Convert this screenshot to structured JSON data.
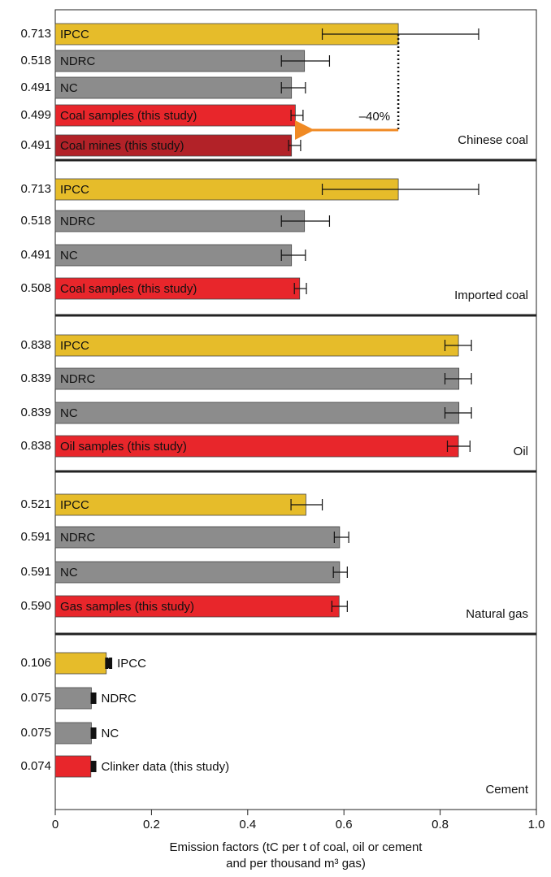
{
  "chart_data": [
    {
      "type": "bar",
      "title": "Chinese coal",
      "annotation": "–40%",
      "categories": [
        "IPCC",
        "NDRC",
        "NC",
        "Coal samples (this study)",
        "Coal mines (this study)"
      ],
      "values": [
        0.713,
        0.518,
        0.491,
        0.499,
        0.491
      ],
      "value_labels": [
        "0.713",
        "0.518",
        "0.491",
        "0.499",
        "0.491"
      ],
      "err_low": [
        0.555,
        0.47,
        0.47,
        0.49,
        0.485
      ],
      "err_high": [
        0.88,
        0.57,
        0.52,
        0.515,
        0.51
      ],
      "colors": [
        "#e6bc2a",
        "#8c8c8c",
        "#8c8c8c",
        "#e8262b",
        "#b22228"
      ],
      "label_colors": [
        "#e0571c",
        "#ffffff",
        "#ffffff",
        "#ffffff",
        "#ffffff"
      ],
      "labels_outside": false
    },
    {
      "type": "bar",
      "title": "Imported coal",
      "categories": [
        "IPCC",
        "NDRC",
        "NC",
        "Coal samples (this study)"
      ],
      "values": [
        0.713,
        0.518,
        0.491,
        0.508
      ],
      "value_labels": [
        "0.713",
        "0.518",
        "0.491",
        "0.508"
      ],
      "err_low": [
        0.555,
        0.47,
        0.47,
        0.497
      ],
      "err_high": [
        0.88,
        0.57,
        0.52,
        0.522
      ],
      "colors": [
        "#e6bc2a",
        "#8c8c8c",
        "#8c8c8c",
        "#e8262b"
      ],
      "label_colors": [
        "#e0571c",
        "#ffffff",
        "#ffffff",
        "#ffffff"
      ],
      "labels_outside": false
    },
    {
      "type": "bar",
      "title": "Oil",
      "categories": [
        "IPCC",
        "NDRC",
        "NC",
        "Oil samples (this study)"
      ],
      "values": [
        0.838,
        0.839,
        0.839,
        0.838
      ],
      "value_labels": [
        "0.838",
        "0.839",
        "0.839",
        "0.838"
      ],
      "err_low": [
        0.81,
        0.81,
        0.81,
        0.815
      ],
      "err_high": [
        0.865,
        0.865,
        0.865,
        0.862
      ],
      "colors": [
        "#e6bc2a",
        "#8c8c8c",
        "#8c8c8c",
        "#e8262b"
      ],
      "label_colors": [
        "#e0571c",
        "#ffffff",
        "#ffffff",
        "#ffffff"
      ],
      "labels_outside": false
    },
    {
      "type": "bar",
      "title": "Natural gas",
      "categories": [
        "IPCC",
        "NDRC",
        "NC",
        "Gas samples (this study)"
      ],
      "values": [
        0.521,
        0.591,
        0.591,
        0.59
      ],
      "value_labels": [
        "0.521",
        "0.591",
        "0.591",
        "0.590"
      ],
      "err_low": [
        0.49,
        0.58,
        0.578,
        0.575
      ],
      "err_high": [
        0.555,
        0.61,
        0.607,
        0.607
      ],
      "colors": [
        "#e6bc2a",
        "#8c8c8c",
        "#8c8c8c",
        "#e8262b"
      ],
      "label_colors": [
        "#e0571c",
        "#ffffff",
        "#ffffff",
        "#ffffff"
      ],
      "labels_outside": false
    },
    {
      "type": "bar",
      "title": "Cement",
      "categories": [
        "IPCC",
        "NDRC",
        "NC",
        "Clinker data (this study)"
      ],
      "values": [
        0.106,
        0.075,
        0.075,
        0.074
      ],
      "value_labels": [
        "0.106",
        "0.075",
        "0.075",
        "0.074"
      ],
      "err_low": [
        0.107,
        0.077,
        0.077,
        0.077
      ],
      "err_high": [
        0.115,
        0.082,
        0.082,
        0.082
      ],
      "colors": [
        "#e6bc2a",
        "#8c8c8c",
        "#8c8c8c",
        "#e8262b"
      ],
      "label_colors": [
        "#e0571c",
        "#a0a0a0",
        "#a0a0a0",
        "#e8262b"
      ],
      "labels_outside": true,
      "xlim": [
        0,
        1
      ],
      "xticks": [
        0,
        0.2,
        0.4,
        0.6,
        0.8,
        {
          "value": 1,
          "label": "1.0"
        }
      ],
      "xlabel": [
        "Emission factors (tC per t of coal, oil or cement",
        "and per thousand m³ gas)"
      ]
    }
  ]
}
